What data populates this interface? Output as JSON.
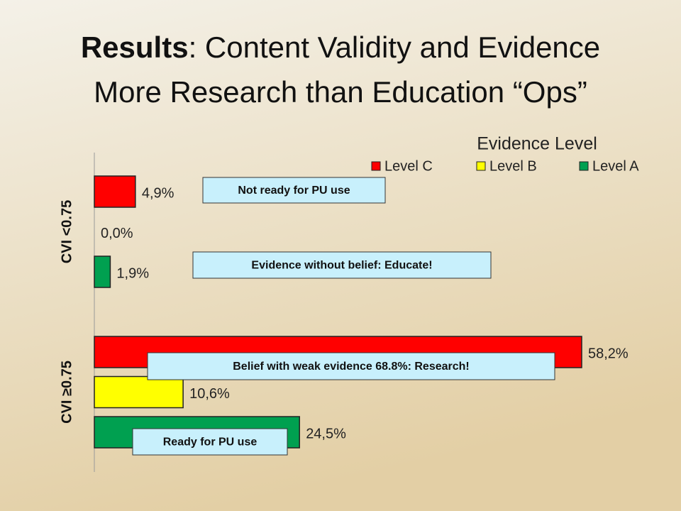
{
  "chart_data": {
    "type": "bar",
    "orientation": "horizontal",
    "title_bold": "Results",
    "title": ": Content Validity and Evidence",
    "subtitle": "More Research than Education “Ops”",
    "legend_title": "Evidence Level",
    "categories": [
      "CVI <0.75",
      "CVI ≥0.75"
    ],
    "series": [
      {
        "name": "Level C",
        "color": "#ff0000",
        "values": [
          4.9,
          58.2
        ],
        "value_labels": [
          "4,9%",
          "58,2%"
        ]
      },
      {
        "name": "Level B",
        "color": "#ffff00",
        "values": [
          0.0,
          10.6
        ],
        "value_labels": [
          "0,0%",
          "10,6%"
        ]
      },
      {
        "name": "Level A",
        "color": "#00a050",
        "values": [
          1.9,
          24.5
        ],
        "value_labels": [
          "1,9%",
          "24,5%"
        ]
      }
    ],
    "annotations": [
      "Not ready for PU use",
      "Evidence without belief:  Educate!",
      "Belief with weak evidence 68.8%:  Research!",
      "Ready for PU use"
    ]
  }
}
